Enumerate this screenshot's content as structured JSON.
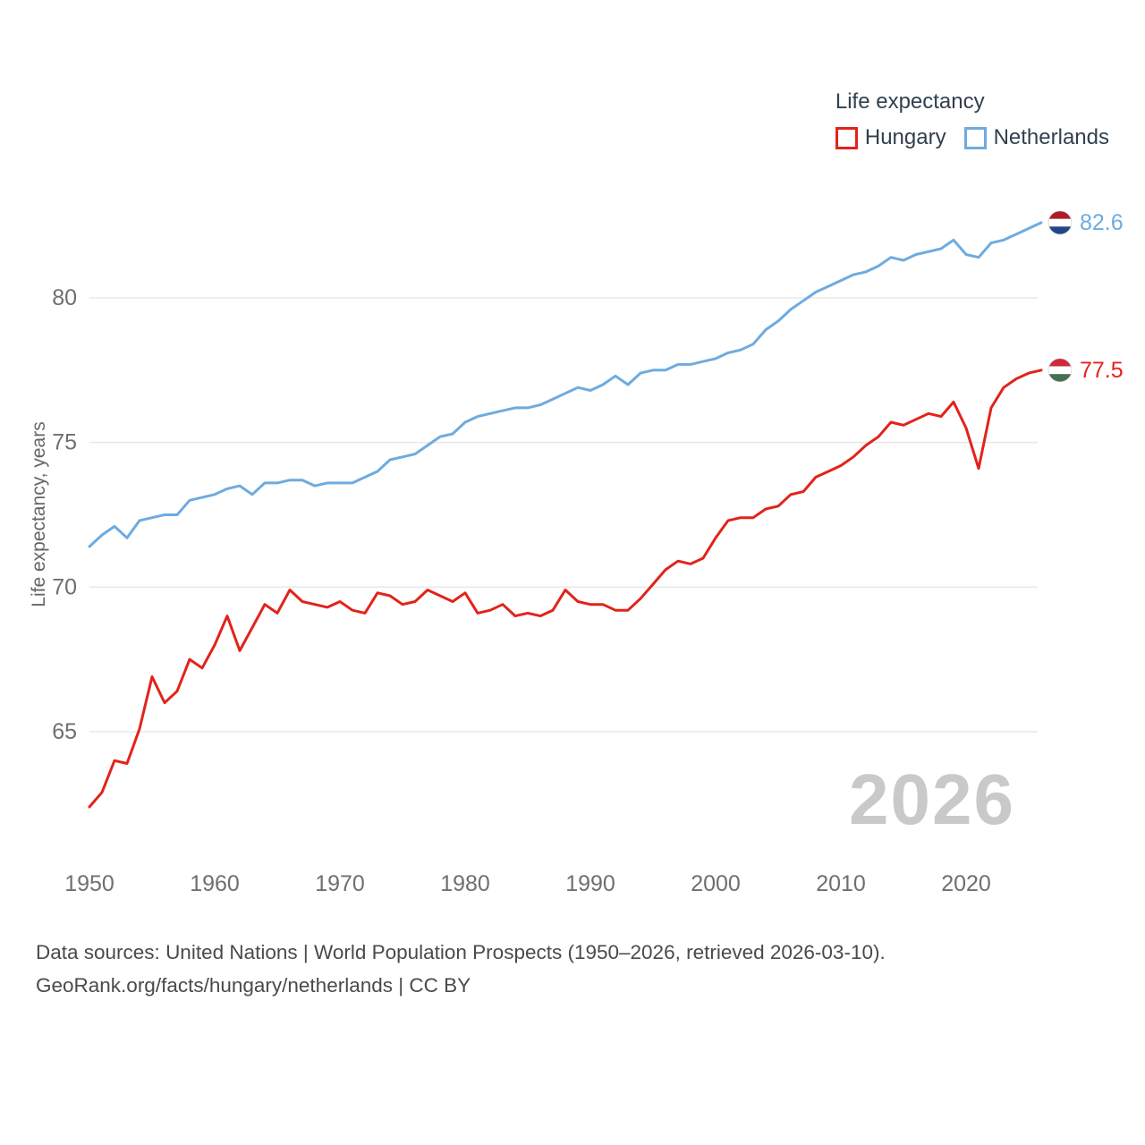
{
  "legend": {
    "title": "Life expectancy",
    "items": [
      {
        "label": "Hungary",
        "color": "#e2231a"
      },
      {
        "label": "Netherlands",
        "color": "#6eabdf"
      }
    ]
  },
  "chart_data": {
    "type": "line",
    "title": "Life expectancy",
    "xlabel": "",
    "ylabel": "Life expectancy, years",
    "xlim": [
      1950,
      2026
    ],
    "ylim": [
      62,
      83.5
    ],
    "x_ticks": [
      1950,
      1960,
      1970,
      1980,
      1990,
      2000,
      2010,
      2020
    ],
    "y_ticks": [
      65,
      70,
      75,
      80
    ],
    "grid": true,
    "legend_position": "top-right",
    "years": [
      1950,
      1951,
      1952,
      1953,
      1954,
      1955,
      1956,
      1957,
      1958,
      1959,
      1960,
      1961,
      1962,
      1963,
      1964,
      1965,
      1966,
      1967,
      1968,
      1969,
      1970,
      1971,
      1972,
      1973,
      1974,
      1975,
      1976,
      1977,
      1978,
      1979,
      1980,
      1981,
      1982,
      1983,
      1984,
      1985,
      1986,
      1987,
      1988,
      1989,
      1990,
      1991,
      1992,
      1993,
      1994,
      1995,
      1996,
      1997,
      1998,
      1999,
      2000,
      2001,
      2002,
      2003,
      2004,
      2005,
      2006,
      2007,
      2008,
      2009,
      2010,
      2011,
      2012,
      2013,
      2014,
      2015,
      2016,
      2017,
      2018,
      2019,
      2020,
      2021,
      2022,
      2023,
      2024,
      2025,
      2026
    ],
    "series": [
      {
        "name": "Hungary",
        "color": "#e2231a",
        "flag": "hungary",
        "end_label": "77.5",
        "values": [
          62.4,
          62.9,
          64.0,
          63.9,
          65.1,
          66.9,
          66.0,
          66.4,
          67.5,
          67.2,
          68.0,
          69.0,
          67.8,
          68.6,
          69.4,
          69.1,
          69.9,
          69.5,
          69.4,
          69.3,
          69.5,
          69.2,
          69.1,
          69.8,
          69.7,
          69.4,
          69.5,
          69.9,
          69.7,
          69.5,
          69.8,
          69.1,
          69.2,
          69.4,
          69.0,
          69.1,
          69.0,
          69.2,
          69.9,
          69.5,
          69.4,
          69.4,
          69.2,
          69.2,
          69.6,
          70.1,
          70.6,
          70.9,
          70.8,
          71.0,
          71.7,
          72.3,
          72.4,
          72.4,
          72.7,
          72.8,
          73.2,
          73.3,
          73.8,
          74.0,
          74.2,
          74.5,
          74.9,
          75.2,
          75.7,
          75.6,
          75.8,
          76.0,
          75.9,
          76.4,
          75.5,
          74.1,
          76.2,
          76.9,
          77.2,
          77.4,
          77.5
        ]
      },
      {
        "name": "Netherlands",
        "color": "#6eabdf",
        "flag": "netherlands",
        "end_label": "82.6",
        "values": [
          71.4,
          71.8,
          72.1,
          71.7,
          72.3,
          72.4,
          72.5,
          72.5,
          73.0,
          73.1,
          73.2,
          73.4,
          73.5,
          73.2,
          73.6,
          73.6,
          73.7,
          73.7,
          73.5,
          73.6,
          73.6,
          73.6,
          73.8,
          74.0,
          74.4,
          74.5,
          74.6,
          74.9,
          75.2,
          75.3,
          75.7,
          75.9,
          76.0,
          76.1,
          76.2,
          76.2,
          76.3,
          76.5,
          76.7,
          76.9,
          76.8,
          77.0,
          77.3,
          77.0,
          77.4,
          77.5,
          77.5,
          77.7,
          77.7,
          77.8,
          77.9,
          78.1,
          78.2,
          78.4,
          78.9,
          79.2,
          79.6,
          79.9,
          80.2,
          80.4,
          80.6,
          80.8,
          80.9,
          81.1,
          81.4,
          81.3,
          81.5,
          81.6,
          81.7,
          82.0,
          81.5,
          81.4,
          81.9,
          82.0,
          82.2,
          82.4,
          82.6
        ]
      }
    ]
  },
  "watermark": "2026",
  "footer": {
    "line1": "Data sources: United Nations | World Population Prospects (1950–2026, retrieved 2026-03-10).",
    "line2": "GeoRank.org/facts/hungary/netherlands | CC BY"
  },
  "colors": {
    "hungary": "#e2231a",
    "netherlands": "#6eabdf",
    "grid": "#e8e8e8",
    "tick_text": "#6f6f6f",
    "legend_text": "#32404e",
    "watermark": "#c9c9c9",
    "footer_text": "#4a4a4a"
  },
  "flags": {
    "netherlands": [
      "#AE1C28",
      "#FFFFFF",
      "#21468B"
    ],
    "hungary": [
      "#CD2A3E",
      "#FFFFFF",
      "#477050"
    ]
  }
}
